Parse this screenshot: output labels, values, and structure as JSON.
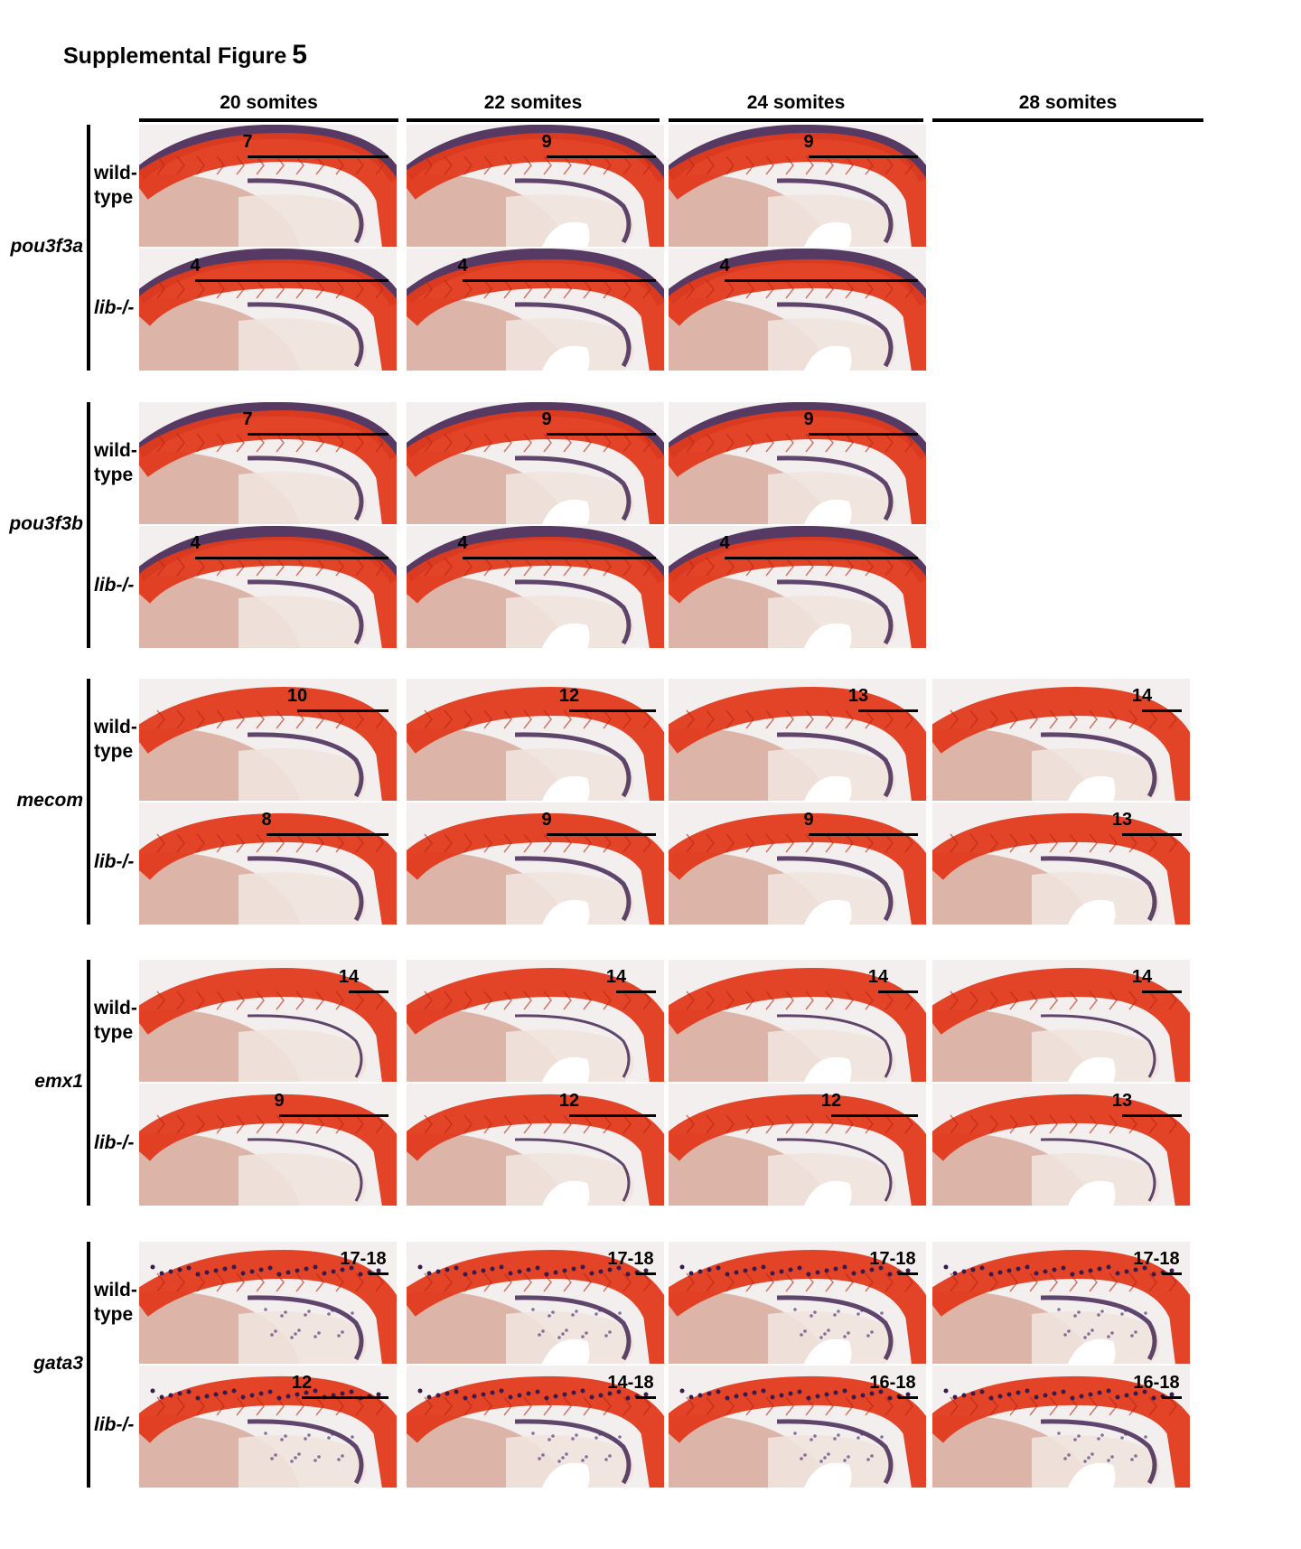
{
  "figure": {
    "title": "Supplemental Figure",
    "number": "5"
  },
  "columns": [
    "20 somites",
    "22 somites",
    "24 somites",
    "28 somites"
  ],
  "row_labels": {
    "wildtype": "wild-\ntype",
    "mutant": "lib-/-"
  },
  "genes": [
    {
      "name": "pou3f3a",
      "stain": "dorsal",
      "wildtype": [
        "7",
        "9",
        "9",
        null
      ],
      "mutant": [
        "4",
        "4",
        "4",
        null
      ]
    },
    {
      "name": "pou3f3b",
      "stain": "dorsal",
      "wildtype": [
        "7",
        "9",
        "9",
        null
      ],
      "mutant": [
        "4",
        "4",
        "4",
        null
      ]
    },
    {
      "name": "mecom",
      "stain": "light",
      "wildtype": [
        "10",
        "12",
        "13",
        "14"
      ],
      "mutant": [
        "8",
        "9",
        "9",
        "13"
      ]
    },
    {
      "name": "emx1",
      "stain": "none",
      "wildtype": [
        "14",
        "14",
        "14",
        "14"
      ],
      "mutant": [
        "9",
        "12",
        "12",
        "13"
      ]
    },
    {
      "name": "gata3",
      "stain": "dots",
      "wildtype": [
        "17-18",
        "17-18",
        "17-18",
        "17-18"
      ],
      "mutant": [
        "12",
        "14-18",
        "16-18",
        "16-18"
      ]
    }
  ],
  "colors": {
    "somite_red": "#e23a1c",
    "stain_purple": "#3a1a4a",
    "yolk": "#d7a99b",
    "background": "#f3efef"
  },
  "panel_image": "zebrafish-embryo-in-situ-photo"
}
